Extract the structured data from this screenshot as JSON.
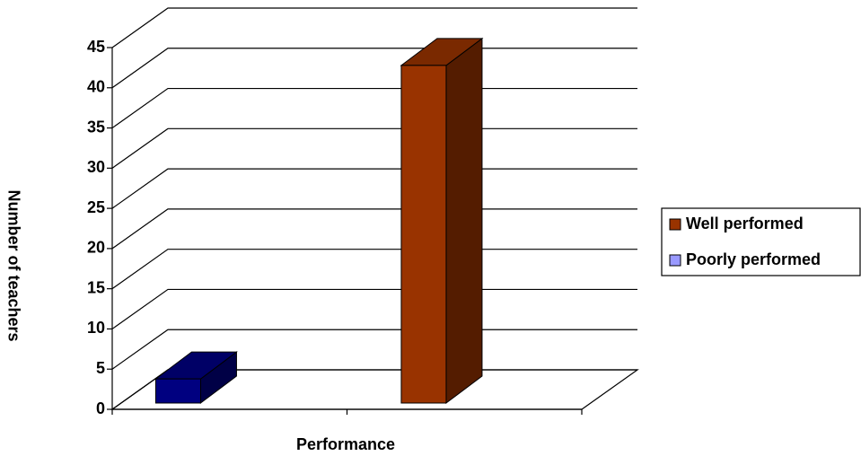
{
  "chart_data": {
    "type": "bar3d",
    "x_label": "Performance",
    "y_label": "Number of teachers",
    "categories": [
      null
    ],
    "series": [
      {
        "name": "Well performed",
        "color": "#993300",
        "legend_color": "#993300",
        "values": [
          42
        ]
      },
      {
        "name": "Poorly performed",
        "color": "#000080",
        "legend_color": "#9999ff",
        "values": [
          3
        ]
      }
    ],
    "ylim": [
      0,
      45
    ],
    "yticks": [
      0,
      5,
      10,
      15,
      20,
      25,
      30,
      35,
      40,
      45
    ],
    "grid": true,
    "legend": "right"
  }
}
